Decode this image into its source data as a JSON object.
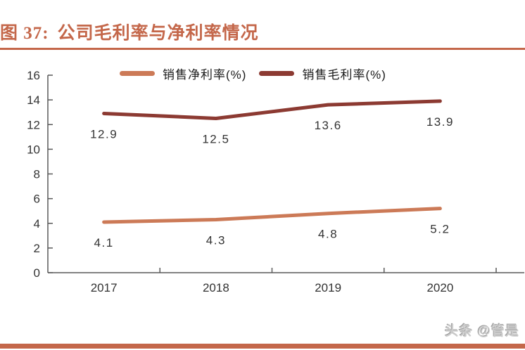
{
  "header": {
    "figure_label": "图 37:",
    "title": "公司毛利率与净利率情况"
  },
  "footer": {
    "watermark": "头条 @管是"
  },
  "colors": {
    "accent": "#C4674A",
    "axis": "#595959",
    "text": "#333333",
    "watermark": "#cccccc",
    "net_margin_line": "#CC7A57",
    "gross_margin_line": "#8C3A32"
  },
  "chart_data": {
    "type": "line",
    "title": "公司毛利率与净利率情况",
    "categories": [
      "2017",
      "2018",
      "2019",
      "2020"
    ],
    "series": [
      {
        "name": "销售净利率(%)",
        "color": "#CC7A57",
        "values": [
          4.1,
          4.3,
          4.8,
          5.2
        ]
      },
      {
        "name": "销售毛利率(%)",
        "color": "#8C3A32",
        "values": [
          12.9,
          12.5,
          13.6,
          13.9
        ]
      }
    ],
    "ylim": [
      0,
      16
    ],
    "y_ticks": [
      0,
      2,
      4,
      6,
      8,
      10,
      12,
      14,
      16
    ],
    "grid": false,
    "legend_position": "top",
    "data_labels": true
  }
}
